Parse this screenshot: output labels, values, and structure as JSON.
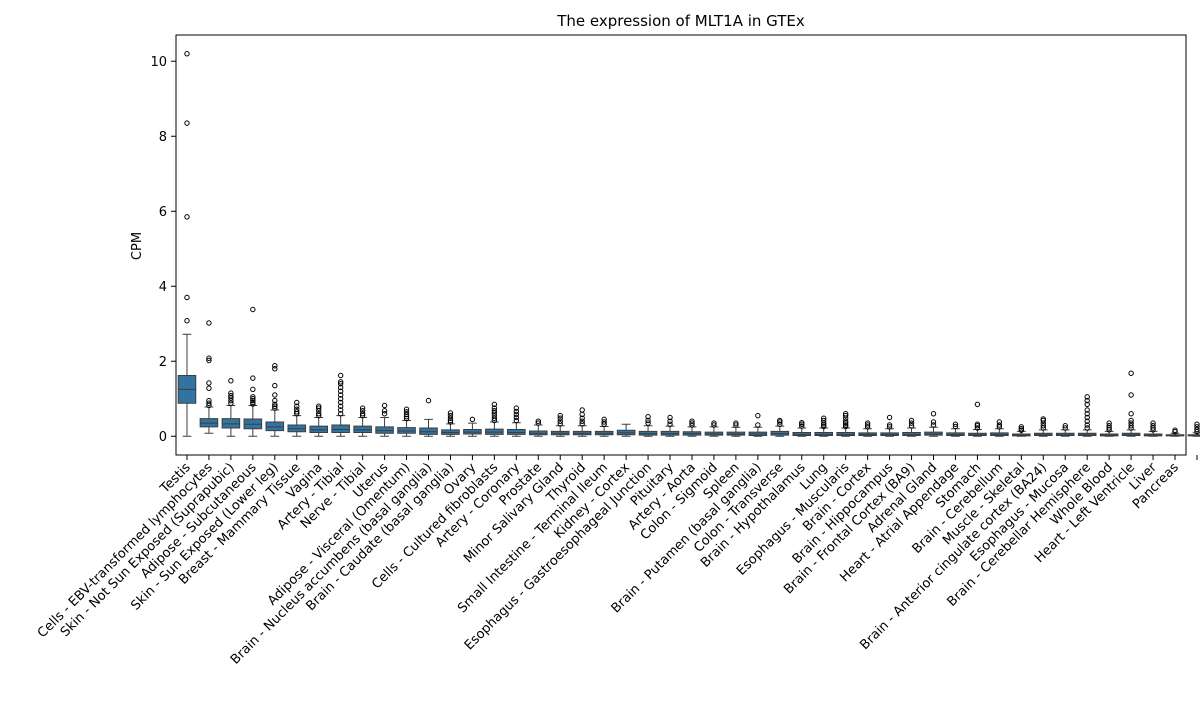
{
  "chart_data": {
    "type": "box",
    "title": "The expression of MLT1A in GTEx",
    "xlabel": "",
    "ylabel": "CPM",
    "ylim": [
      -0.5,
      10.7
    ],
    "yticks": [
      0,
      2,
      4,
      6,
      8,
      10
    ],
    "ytick_labels": [
      "0",
      "2",
      "4",
      "6",
      "8",
      "10"
    ],
    "box_color": "#3274a1",
    "categories": [
      "Testis",
      "Cells - EBV-transformed lymphocytes",
      "Skin - Not Sun Exposed (Suprapubic)",
      "Adipose - Subcutaneous",
      "Skin - Sun Exposed (Lower leg)",
      "Breast - Mammary Tissue",
      "Vagina",
      "Artery - Tibial",
      "Nerve - Tibial",
      "Uterus",
      "Adipose - Visceral (Omentum)",
      "Brain - Nucleus accumbens (basal ganglia)",
      "Brain - Caudate (basal ganglia)",
      "Ovary",
      "Cells - Cultured fibroblasts",
      "Artery - Coronary",
      "Prostate",
      "Minor Salivary Gland",
      "Thyroid",
      "Small Intestine - Terminal Ileum",
      "Kidney - Cortex",
      "Esophagus - Gastroesophageal Junction",
      "Pituitary",
      "Artery - Aorta",
      "Colon - Sigmoid",
      "Spleen",
      "Brain - Putamen (basal ganglia)",
      "Colon - Transverse",
      "Brain - Hypothalamus",
      "Lung",
      "Esophagus - Muscularis",
      "Brain - Cortex",
      "Brain - Hippocampus",
      "Brain - Frontal Cortex (BA9)",
      "Adrenal Gland",
      "Heart - Atrial Appendage",
      "Stomach",
      "Brain - Cerebellum",
      "Muscle - Skeletal",
      "Brain - Anterior cingulate cortex (BA24)",
      "Esophagus - Mucosa",
      "Brain - Cerebellar Hemisphere",
      "Whole Blood",
      "Heart - Left Ventricle",
      "Liver",
      "Pancreas"
    ],
    "boxes": [
      {
        "q1": 0.88,
        "median": 1.25,
        "q3": 1.62,
        "whislo": 0.0,
        "whishi": 2.72,
        "fliers": [
          3.08,
          3.7,
          5.85,
          8.35,
          10.2
        ]
      },
      {
        "q1": 0.25,
        "median": 0.35,
        "q3": 0.47,
        "whislo": 0.08,
        "whishi": 0.78,
        "fliers": [
          0.82,
          0.88,
          0.95,
          1.28,
          1.42,
          2.02,
          2.08,
          3.02
        ]
      },
      {
        "q1": 0.22,
        "median": 0.33,
        "q3": 0.47,
        "whislo": 0.0,
        "whishi": 0.82,
        "fliers": [
          0.88,
          0.95,
          1.02,
          1.08,
          1.15,
          1.48
        ]
      },
      {
        "q1": 0.2,
        "median": 0.32,
        "q3": 0.46,
        "whislo": 0.0,
        "whishi": 0.82,
        "fliers": [
          0.86,
          0.9,
          0.95,
          1.0,
          1.05,
          1.25,
          1.55,
          3.38
        ]
      },
      {
        "q1": 0.15,
        "median": 0.25,
        "q3": 0.38,
        "whislo": 0.0,
        "whishi": 0.7,
        "fliers": [
          0.75,
          0.8,
          0.85,
          0.95,
          1.1,
          1.35,
          1.8,
          1.88
        ]
      },
      {
        "q1": 0.12,
        "median": 0.2,
        "q3": 0.3,
        "whislo": 0.0,
        "whishi": 0.55,
        "fliers": [
          0.6,
          0.65,
          0.72,
          0.8,
          0.9
        ]
      },
      {
        "q1": 0.1,
        "median": 0.17,
        "q3": 0.27,
        "whislo": 0.0,
        "whishi": 0.5,
        "fliers": [
          0.55,
          0.6,
          0.68,
          0.75,
          0.8
        ]
      },
      {
        "q1": 0.1,
        "median": 0.18,
        "q3": 0.3,
        "whislo": 0.0,
        "whishi": 0.55,
        "fliers": [
          0.6,
          0.7,
          0.8,
          0.9,
          1.0,
          1.1,
          1.2,
          1.3,
          1.4,
          1.45,
          1.62
        ]
      },
      {
        "q1": 0.1,
        "median": 0.17,
        "q3": 0.27,
        "whislo": 0.0,
        "whishi": 0.5,
        "fliers": [
          0.55,
          0.6,
          0.68,
          0.75
        ]
      },
      {
        "q1": 0.08,
        "median": 0.15,
        "q3": 0.25,
        "whislo": 0.0,
        "whishi": 0.5,
        "fliers": [
          0.6,
          0.68,
          0.82
        ]
      },
      {
        "q1": 0.08,
        "median": 0.14,
        "q3": 0.23,
        "whislo": 0.0,
        "whishi": 0.42,
        "fliers": [
          0.47,
          0.52,
          0.58,
          0.65,
          0.72
        ]
      },
      {
        "q1": 0.05,
        "median": 0.12,
        "q3": 0.22,
        "whislo": 0.0,
        "whishi": 0.45,
        "fliers": [
          0.95
        ]
      },
      {
        "q1": 0.05,
        "median": 0.1,
        "q3": 0.17,
        "whislo": 0.0,
        "whishi": 0.33,
        "fliers": [
          0.38,
          0.42,
          0.48,
          0.55,
          0.62
        ]
      },
      {
        "q1": 0.06,
        "median": 0.11,
        "q3": 0.18,
        "whislo": 0.0,
        "whishi": 0.35,
        "fliers": [
          0.45
        ]
      },
      {
        "q1": 0.05,
        "median": 0.11,
        "q3": 0.19,
        "whislo": 0.0,
        "whishi": 0.38,
        "fliers": [
          0.42,
          0.48,
          0.55,
          0.62,
          0.68,
          0.75,
          0.85
        ]
      },
      {
        "q1": 0.05,
        "median": 0.1,
        "q3": 0.18,
        "whislo": 0.0,
        "whishi": 0.36,
        "fliers": [
          0.42,
          0.5,
          0.58,
          0.66,
          0.75
        ]
      },
      {
        "q1": 0.04,
        "median": 0.08,
        "q3": 0.14,
        "whislo": 0.0,
        "whishi": 0.3,
        "fliers": [
          0.35,
          0.4
        ]
      },
      {
        "q1": 0.04,
        "median": 0.08,
        "q3": 0.13,
        "whislo": 0.0,
        "whishi": 0.28,
        "fliers": [
          0.33,
          0.4,
          0.48,
          0.55
        ]
      },
      {
        "q1": 0.04,
        "median": 0.08,
        "q3": 0.13,
        "whislo": 0.0,
        "whishi": 0.28,
        "fliers": [
          0.33,
          0.4,
          0.48,
          0.58,
          0.7
        ]
      },
      {
        "q1": 0.04,
        "median": 0.08,
        "q3": 0.13,
        "whislo": 0.0,
        "whishi": 0.26,
        "fliers": [
          0.32,
          0.38,
          0.45
        ]
      },
      {
        "q1": 0.04,
        "median": 0.09,
        "q3": 0.16,
        "whislo": 0.0,
        "whishi": 0.32,
        "fliers": []
      },
      {
        "q1": 0.03,
        "median": 0.07,
        "q3": 0.13,
        "whislo": 0.0,
        "whishi": 0.28,
        "fliers": [
          0.35,
          0.42,
          0.52
        ]
      },
      {
        "q1": 0.03,
        "median": 0.07,
        "q3": 0.13,
        "whislo": 0.0,
        "whishi": 0.27,
        "fliers": [
          0.32,
          0.4,
          0.5
        ]
      },
      {
        "q1": 0.03,
        "median": 0.07,
        "q3": 0.12,
        "whislo": 0.0,
        "whishi": 0.25,
        "fliers": [
          0.3,
          0.35,
          0.4
        ]
      },
      {
        "q1": 0.03,
        "median": 0.06,
        "q3": 0.11,
        "whislo": 0.0,
        "whishi": 0.25,
        "fliers": [
          0.3,
          0.35
        ]
      },
      {
        "q1": 0.03,
        "median": 0.06,
        "q3": 0.11,
        "whislo": 0.0,
        "whishi": 0.24,
        "fliers": [
          0.3,
          0.35
        ]
      },
      {
        "q1": 0.02,
        "median": 0.06,
        "q3": 0.11,
        "whislo": 0.0,
        "whishi": 0.24,
        "fliers": [
          0.3,
          0.55
        ]
      },
      {
        "q1": 0.03,
        "median": 0.07,
        "q3": 0.13,
        "whislo": 0.0,
        "whishi": 0.27,
        "fliers": [
          0.32,
          0.38,
          0.42
        ]
      },
      {
        "q1": 0.02,
        "median": 0.05,
        "q3": 0.1,
        "whislo": 0.0,
        "whishi": 0.22,
        "fliers": [
          0.27,
          0.32,
          0.36
        ]
      },
      {
        "q1": 0.02,
        "median": 0.05,
        "q3": 0.1,
        "whislo": 0.0,
        "whishi": 0.22,
        "fliers": [
          0.26,
          0.3,
          0.35,
          0.42,
          0.48
        ]
      },
      {
        "q1": 0.02,
        "median": 0.05,
        "q3": 0.1,
        "whislo": 0.0,
        "whishi": 0.22,
        "fliers": [
          0.26,
          0.3,
          0.35,
          0.4,
          0.48,
          0.55,
          0.6
        ]
      },
      {
        "q1": 0.02,
        "median": 0.05,
        "q3": 0.09,
        "whislo": 0.0,
        "whishi": 0.2,
        "fliers": [
          0.25,
          0.3,
          0.35
        ]
      },
      {
        "q1": 0.02,
        "median": 0.05,
        "q3": 0.09,
        "whislo": 0.0,
        "whishi": 0.2,
        "fliers": [
          0.25,
          0.3,
          0.5
        ]
      },
      {
        "q1": 0.02,
        "median": 0.05,
        "q3": 0.1,
        "whislo": 0.0,
        "whishi": 0.22,
        "fliers": [
          0.28,
          0.35,
          0.42
        ]
      },
      {
        "q1": 0.03,
        "median": 0.06,
        "q3": 0.11,
        "whislo": 0.0,
        "whishi": 0.24,
        "fliers": [
          0.3,
          0.38,
          0.6
        ]
      },
      {
        "q1": 0.02,
        "median": 0.05,
        "q3": 0.09,
        "whislo": 0.0,
        "whishi": 0.2,
        "fliers": [
          0.26,
          0.32
        ]
      },
      {
        "q1": 0.02,
        "median": 0.04,
        "q3": 0.08,
        "whislo": 0.0,
        "whishi": 0.18,
        "fliers": [
          0.22,
          0.28,
          0.32,
          0.85
        ]
      },
      {
        "q1": 0.02,
        "median": 0.05,
        "q3": 0.09,
        "whislo": 0.0,
        "whishi": 0.2,
        "fliers": [
          0.25,
          0.3,
          0.38
        ]
      },
      {
        "q1": 0.01,
        "median": 0.03,
        "q3": 0.06,
        "whislo": 0.0,
        "whishi": 0.13,
        "fliers": [
          0.16,
          0.2,
          0.25
        ]
      },
      {
        "q1": 0.02,
        "median": 0.04,
        "q3": 0.08,
        "whislo": 0.0,
        "whishi": 0.17,
        "fliers": [
          0.22,
          0.28,
          0.35,
          0.42,
          0.46
        ]
      },
      {
        "q1": 0.02,
        "median": 0.04,
        "q3": 0.08,
        "whislo": 0.0,
        "whishi": 0.17,
        "fliers": [
          0.22,
          0.28
        ]
      },
      {
        "q1": 0.02,
        "median": 0.04,
        "q3": 0.08,
        "whislo": 0.0,
        "whishi": 0.17,
        "fliers": [
          0.22,
          0.3,
          0.4,
          0.5,
          0.6,
          0.7,
          0.85,
          0.95,
          1.05
        ]
      },
      {
        "q1": 0.01,
        "median": 0.03,
        "q3": 0.06,
        "whislo": 0.0,
        "whishi": 0.13,
        "fliers": [
          0.17,
          0.22,
          0.28,
          0.35
        ]
      },
      {
        "q1": 0.02,
        "median": 0.04,
        "q3": 0.08,
        "whislo": 0.0,
        "whishi": 0.17,
        "fliers": [
          0.22,
          0.28,
          0.35,
          0.42,
          0.6,
          1.1,
          1.68
        ]
      },
      {
        "q1": 0.01,
        "median": 0.03,
        "q3": 0.06,
        "whislo": 0.0,
        "whishi": 0.13,
        "fliers": [
          0.17,
          0.22,
          0.28,
          0.35
        ]
      },
      {
        "q1": 0.01,
        "median": 0.02,
        "q3": 0.04,
        "whislo": 0.0,
        "whishi": 0.08,
        "fliers": [
          0.12,
          0.16
        ]
      },
      {
        "q1": 0.01,
        "median": 0.02,
        "q3": 0.04,
        "whislo": 0.0,
        "whishi": 0.09,
        "fliers": [
          0.12,
          0.18,
          0.25,
          0.32
        ]
      }
    ]
  }
}
